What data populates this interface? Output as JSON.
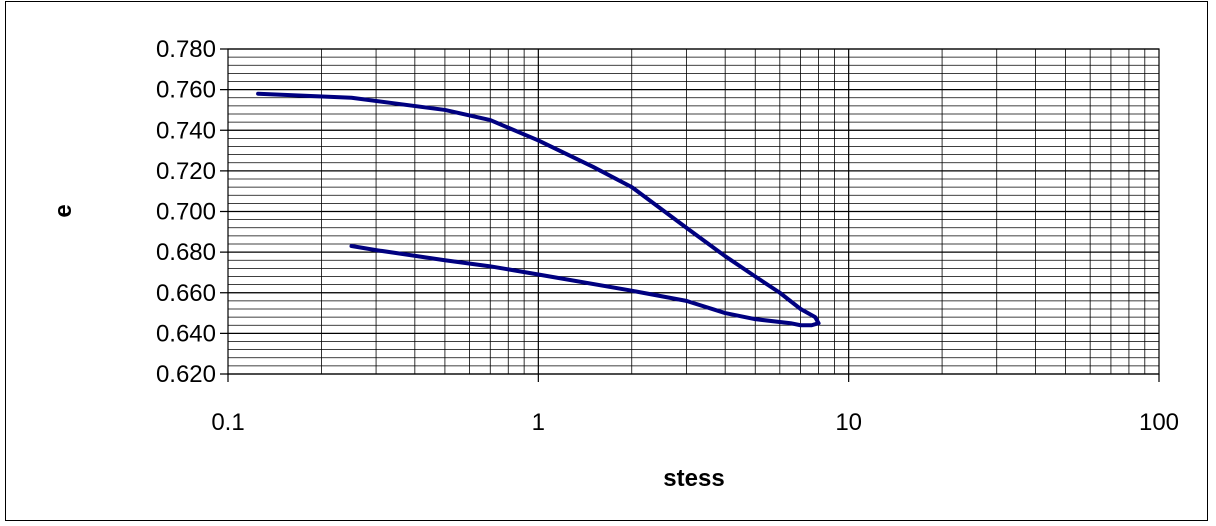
{
  "chart_data": {
    "type": "line",
    "title": "",
    "xlabel": "stess",
    "ylabel": "e",
    "x_scale": "log",
    "xlim": [
      0.1,
      100
    ],
    "ylim": [
      0.62,
      0.78
    ],
    "y_major_step": 0.02,
    "y_minor_step": 0.004,
    "grid": true,
    "legend": "none",
    "x_tick_labels": [
      "0.1",
      "1",
      "10",
      "100"
    ],
    "y_tick_labels": [
      "0.620",
      "0.640",
      "0.660",
      "0.680",
      "0.700",
      "0.720",
      "0.740",
      "0.760",
      "0.780"
    ],
    "series": [
      {
        "color": "#000080",
        "x": [
          0.125,
          0.25,
          0.5,
          0.7,
          1.0,
          1.5,
          2.0,
          3.0,
          4.0,
          5.0,
          6.0,
          7.0,
          7.8,
          8.0,
          7.6,
          7.0,
          6.5,
          5.0,
          4.0,
          3.0,
          2.0,
          1.0,
          0.7,
          0.5,
          0.3,
          0.25
        ],
        "y": [
          0.758,
          0.756,
          0.75,
          0.745,
          0.735,
          0.722,
          0.712,
          0.692,
          0.678,
          0.668,
          0.66,
          0.652,
          0.648,
          0.645,
          0.644,
          0.644,
          0.645,
          0.647,
          0.65,
          0.656,
          0.661,
          0.669,
          0.673,
          0.676,
          0.681,
          0.683
        ]
      }
    ]
  }
}
